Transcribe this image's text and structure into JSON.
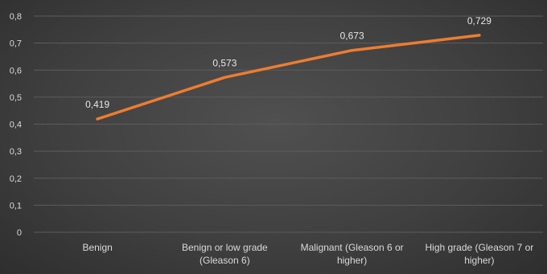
{
  "chart_data": {
    "type": "line",
    "title": "",
    "xlabel": "",
    "ylabel": "",
    "categories": [
      [
        "Benign"
      ],
      [
        "Benign or low grade",
        "(Gleason 6)"
      ],
      [
        "Malignant (Gleason 6 or",
        "higher)"
      ],
      [
        "High grade (Gleason 7 or",
        "higher)"
      ]
    ],
    "series": [
      {
        "values": [
          0.419,
          0.573,
          0.673,
          0.729
        ],
        "labels": [
          "0,419",
          "0,573",
          "0,673",
          "0,729"
        ],
        "color": "#ed7d31"
      }
    ],
    "ylim": [
      0,
      0.8
    ],
    "yticks": [
      0,
      0.1,
      0.2,
      0.3,
      0.4,
      0.5,
      0.6,
      0.7,
      0.8
    ],
    "ytick_labels": [
      "0",
      "0,1",
      "0,2",
      "0,3",
      "0,4",
      "0,5",
      "0,6",
      "0,7",
      "0,8"
    ],
    "grid": true,
    "legend": "none"
  }
}
